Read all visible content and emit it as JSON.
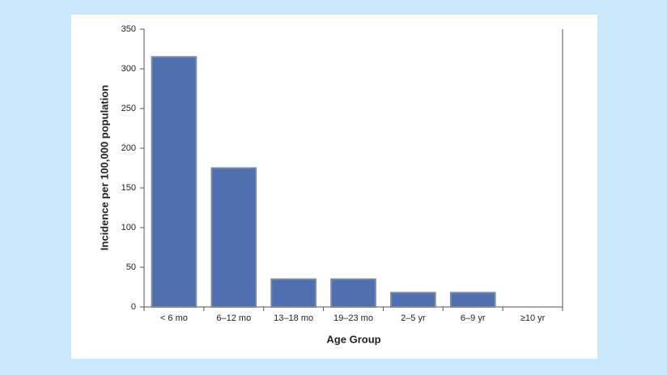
{
  "chart_data": {
    "type": "bar",
    "x_label": "Age Group",
    "y_label": "Incidence per 100,000 population",
    "categories": [
      "< 6 mo",
      "6–12 mo",
      "13–18 mo",
      "19–23 mo",
      "2–5 yr",
      "6–9 yr",
      "≥10 yr"
    ],
    "values": [
      315,
      175,
      35,
      35,
      18,
      18,
      0
    ],
    "color": "#4f6fb1",
    "ylim": [
      0,
      350
    ],
    "yticks": [
      0,
      50,
      100,
      150,
      200,
      250,
      300,
      350
    ],
    "grid": false
  }
}
